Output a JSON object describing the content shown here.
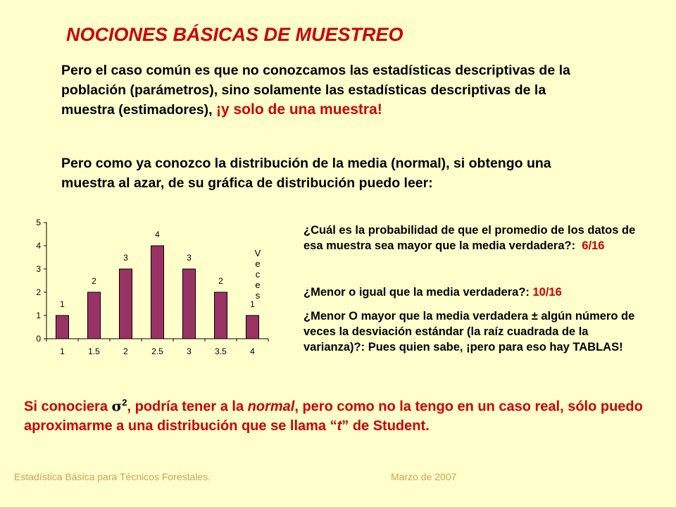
{
  "title": "NOCIONES BÁSICAS DE MUESTREO",
  "para1": {
    "text": "Pero el caso común es que no conozcamos las estadísticas descriptivas de la población (parámetros), sino solamente las estadísticas descriptivas de la muestra (estimadores), ",
    "emphasis": "¡y solo de una muestra!"
  },
  "para2": "Pero como ya conozco la distribución de la media (normal), si obtengo una muestra al azar, de su gráfica de distribución puedo leer:",
  "questions": {
    "q1_text": "¿Cuál es la probabilidad de que el promedio de los datos de esa muestra sea mayor que la media verdadera?:",
    "q1_answer": "6/16",
    "q2_text": "¿Menor o igual que la media verdadera?:",
    "q2_answer": "10/16",
    "q3_text": "¿Menor O mayor que la media verdadera ± algún número de veces la desviación estándar (la raíz cuadrada de la varianza)?: Pues quien sabe, ¡pero para eso hay ",
    "q3_bold": "TABLAS",
    "q3_end": "!"
  },
  "student": {
    "p1": "Si conociera ",
    "sigma": "σ",
    "sup": "2",
    "p2": ", podría tener a la ",
    "normal": "normal",
    "p3": ", pero como no la tengo en un caso real, sólo puedo aproximarme a una distribución que se llama “",
    "t": "t",
    "p4": "” de Student."
  },
  "footer": {
    "left": "Estadística Básica para Técnicos Forestales.",
    "right": "Marzo de 2007"
  },
  "colors": {
    "background": "#FFFFCC",
    "accent_red": "#CC0000",
    "bar_fill": "#993366",
    "footer": "#D2A050"
  },
  "chart_data": {
    "type": "bar",
    "categories": [
      "1",
      "1.5",
      "2",
      "2.5",
      "3",
      "3.5",
      "4"
    ],
    "values": [
      1,
      2,
      3,
      4,
      3,
      2,
      1
    ],
    "data_labels": [
      "1",
      "2",
      "3",
      "4",
      "3",
      "2",
      "1"
    ],
    "yticks": [
      "0",
      "1",
      "2",
      "3",
      "4",
      "5"
    ],
    "ylim": [
      0,
      5
    ],
    "ylabel": "Veces",
    "grid": false,
    "legend": "none"
  }
}
